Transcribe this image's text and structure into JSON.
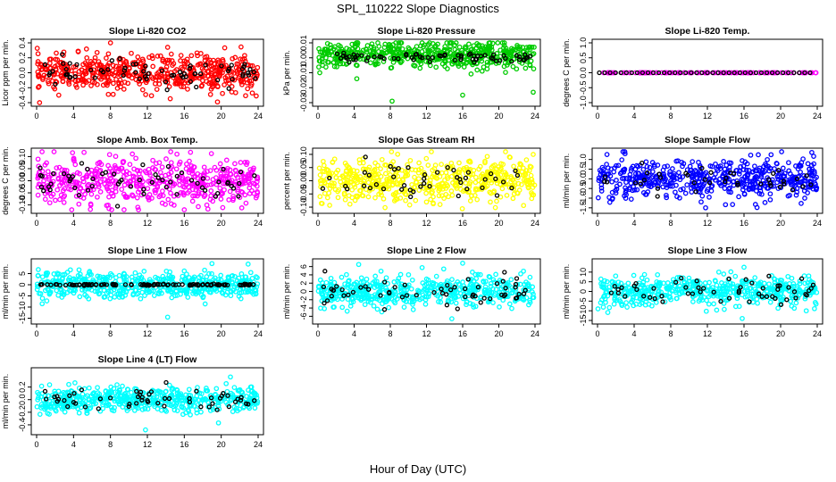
{
  "figure": {
    "title": "SPL_110222  Slope Diagnostics",
    "xlabel": "Hour of Day (UTC)"
  },
  "chart_data": [
    {
      "type": "scatter",
      "title": "Slope Li-820 CO2",
      "ylabel": "Licor ppm per min.",
      "xlim": [
        0,
        24
      ],
      "ylim": [
        -0.4,
        0.4
      ],
      "xticks": [
        "0",
        "4",
        "8",
        "12",
        "16",
        "20",
        "24"
      ],
      "yticks": [
        "-0.4",
        "-0.2",
        "0.0",
        "0.2",
        "0.4"
      ],
      "yvals": [
        -0.4,
        -0.2,
        0.0,
        0.2,
        0.4
      ],
      "color": "#ff0000",
      "spread": 0.12,
      "n": 520,
      "outliers": [
        [
          8.0,
          0.43
        ],
        [
          14.2,
          0.34
        ],
        [
          19.6,
          -0.39
        ],
        [
          23.8,
          -0.31
        ],
        [
          2.4,
          -0.3
        ]
      ],
      "reference": {
        "color": "#000000",
        "spread": 0.08,
        "n": 70
      }
    },
    {
      "type": "scatter",
      "title": "Slope Li-820 Pressure",
      "ylabel": "kPa per min.",
      "xlim": [
        0,
        24
      ],
      "ylim": [
        -0.03,
        0.01
      ],
      "xticks": [
        "0",
        "4",
        "8",
        "12",
        "16",
        "20",
        "24"
      ],
      "yticks": [
        "-0.03",
        "-0.02",
        "-0.01",
        "0.00",
        "0.01"
      ],
      "yvals": [
        -0.03,
        -0.02,
        -0.01,
        0.0,
        0.01
      ],
      "color": "#00cc00",
      "spread": 0.0045,
      "center": 0.002,
      "n": 520,
      "outliers": [
        [
          8.2,
          -0.029
        ],
        [
          16.0,
          -0.025
        ],
        [
          23.8,
          -0.023
        ],
        [
          0.2,
          -0.01
        ],
        [
          4.3,
          -0.014
        ]
      ],
      "reference": {
        "color": "#000000",
        "spread": 0.0015,
        "center": 0.0,
        "n": 70
      }
    },
    {
      "type": "scatter",
      "title": "Slope Li-820 Temp.",
      "ylabel": "degrees C per min.",
      "xlim": [
        0,
        24
      ],
      "ylim": [
        -1.0,
        1.0
      ],
      "xticks": [
        "0",
        "4",
        "8",
        "12",
        "16",
        "20",
        "24"
      ],
      "yticks": [
        "-1.0",
        "-0.5",
        "0.0",
        "0.5",
        "1.0"
      ],
      "yvals": [
        -1.0,
        -0.5,
        0.0,
        0.5,
        1.0
      ],
      "color": "#ff00ff",
      "spread": 0.0,
      "n": 120,
      "reference": {
        "color": "#000000",
        "spread": 0.0,
        "n": 40
      }
    },
    {
      "type": "scatter",
      "title": "Slope Amb. Box Temp.",
      "ylabel": "degrees C per min.",
      "xlim": [
        0,
        24
      ],
      "ylim": [
        -0.12,
        0.12
      ],
      "xticks": [
        "0",
        "4",
        "8",
        "12",
        "16",
        "20",
        "24"
      ],
      "yticks": [
        "-0.10",
        "-0.05",
        "0.00",
        "0.05",
        "0.10"
      ],
      "yvals": [
        -0.1,
        -0.05,
        0.0,
        0.05,
        0.1
      ],
      "color": "#ff00ff",
      "spread": 0.045,
      "n": 520,
      "outliers": [
        [
          3.8,
          -0.12
        ],
        [
          16.0,
          -0.12
        ],
        [
          15.2,
          0.11
        ]
      ],
      "reference": {
        "color": "#000000",
        "spread": 0.035,
        "n": 60
      }
    },
    {
      "type": "scatter",
      "title": "Slope Gas Stream RH",
      "ylabel": "percent per min.",
      "xlim": [
        0,
        24
      ],
      "ylim": [
        -0.11,
        0.11
      ],
      "xticks": [
        "0",
        "4",
        "8",
        "12",
        "16",
        "20",
        "24"
      ],
      "yticks": [
        "-0.10",
        "-0.05",
        "0.00",
        "0.05",
        "0.10"
      ],
      "yvals": [
        -0.1,
        -0.05,
        0.0,
        0.05,
        0.1
      ],
      "color": "#ffff00",
      "spread": 0.04,
      "n": 520,
      "outliers": [
        [
          23.8,
          0.1
        ],
        [
          13.5,
          -0.09
        ]
      ],
      "reference": {
        "color": "#000000",
        "spread": 0.035,
        "n": 45
      }
    },
    {
      "type": "scatter",
      "title": "Slope Sample Flow",
      "ylabel": "ml/min per min.",
      "xlim": [
        0,
        24
      ],
      "ylim": [
        -1.6,
        1.4
      ],
      "xticks": [
        "0",
        "4",
        "8",
        "12",
        "16",
        "20",
        "24"
      ],
      "yticks": [
        "-1.5",
        "-1.0",
        "-0.5",
        "0.0",
        "0.5",
        "1.0"
      ],
      "yvals": [
        -1.5,
        -1.0,
        -0.5,
        0.0,
        0.5,
        1.0
      ],
      "color": "#0000ff",
      "spread": 0.5,
      "n": 520,
      "outliers": [
        [
          3.0,
          1.3
        ],
        [
          11.8,
          -1.5
        ]
      ],
      "reference": {
        "color": "#000000",
        "spread": 0.4,
        "n": 40
      }
    },
    {
      "type": "scatter",
      "title": "Slope Line 1 Flow",
      "ylabel": "ml/min per min.",
      "xlim": [
        0,
        24
      ],
      "ylim": [
        -16,
        10
      ],
      "xticks": [
        "0",
        "4",
        "8",
        "12",
        "16",
        "20",
        "24"
      ],
      "yticks": [
        "-15",
        "-10",
        "-5",
        "0",
        "5"
      ],
      "yvals": [
        -15,
        -10,
        -5,
        0,
        5
      ],
      "color": "#00ffff",
      "spread": 2.8,
      "n": 520,
      "outliers": [
        [
          19.0,
          9.5
        ],
        [
          14.2,
          -14.5
        ],
        [
          0.6,
          -8.5
        ]
      ],
      "reference": {
        "color": "#000000",
        "spread": 0.15,
        "n": 110
      }
    },
    {
      "type": "scatter",
      "title": "Slope Line 2 Flow",
      "ylabel": "ml/min per min.",
      "xlim": [
        0,
        24
      ],
      "ylim": [
        -7,
        7
      ],
      "xticks": [
        "0",
        "4",
        "8",
        "12",
        "16",
        "20",
        "24"
      ],
      "yticks": [
        "-6",
        "-4",
        "-2",
        "0",
        "2",
        "4",
        "6"
      ],
      "yvals": [
        -6,
        -4,
        -2,
        0,
        2,
        4,
        6
      ],
      "color": "#00ffff",
      "spread": 1.8,
      "n": 520,
      "outliers": [
        [
          4.5,
          6.5
        ],
        [
          16.0,
          6.8
        ],
        [
          14.8,
          -6.6
        ]
      ],
      "reference": {
        "color": "#000000",
        "spread": 1.8,
        "n": 60
      }
    },
    {
      "type": "scatter",
      "title": "Slope Line 3 Flow",
      "ylabel": "ml/min per min.",
      "xlim": [
        0,
        24
      ],
      "ylim": [
        -15,
        15
      ],
      "xticks": [
        "0",
        "4",
        "8",
        "12",
        "16",
        "20",
        "24"
      ],
      "yticks": [
        "-15",
        "-10",
        "-5",
        "0",
        "5",
        "10"
      ],
      "yvals": [
        -15,
        -10,
        -5,
        0,
        5,
        10
      ],
      "color": "#00ffff",
      "spread": 3.6,
      "n": 520,
      "outliers": [
        [
          16.0,
          12.5
        ],
        [
          15.8,
          -14
        ],
        [
          22.8,
          -10
        ]
      ],
      "reference": {
        "color": "#000000",
        "spread": 3.2,
        "n": 55
      }
    },
    {
      "type": "scatter",
      "title": "Slope Line 4 (LT) Flow",
      "ylabel": "ml/min per min.",
      "xlim": [
        0,
        24
      ],
      "ylim": [
        -0.5,
        0.45
      ],
      "xticks": [
        "0",
        "4",
        "8",
        "12",
        "16",
        "20",
        "24"
      ],
      "yticks": [
        "-0.4",
        "-0.2",
        "0.0",
        "0.2"
      ],
      "yvals": [
        -0.4,
        -0.2,
        0.0,
        0.2
      ],
      "color": "#00ffff",
      "spread": 0.1,
      "n": 520,
      "outliers": [
        [
          11.8,
          -0.48
        ],
        [
          19.7,
          -0.37
        ],
        [
          21.0,
          0.36
        ]
      ],
      "reference": {
        "color": "#000000",
        "spread": 0.09,
        "n": 55
      }
    }
  ]
}
